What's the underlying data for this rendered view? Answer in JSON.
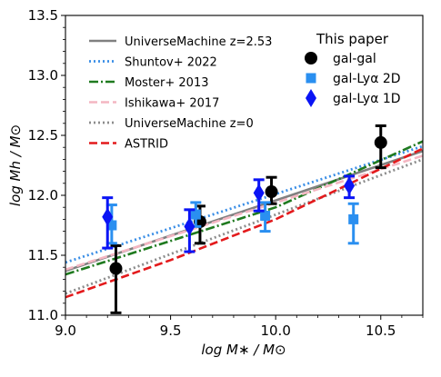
{
  "chart_data": {
    "type": "line",
    "xlabel": "log M∗ / M⊙",
    "ylabel": "log Mh / M⊙",
    "xlim": [
      9.0,
      10.7
    ],
    "ylim": [
      11.0,
      13.5
    ],
    "xticks": [
      "9.0",
      "9.5",
      "10.0",
      "10.5"
    ],
    "yticks": [
      "11.0",
      "11.5",
      "12.0",
      "12.5",
      "13.0",
      "13.5"
    ],
    "legend_left": {
      "placement": "upper-left",
      "entries": [
        {
          "label": "UniverseMachine z=2.53"
        },
        {
          "label": "Shuntov+ 2022"
        },
        {
          "label": "Moster+ 2013"
        },
        {
          "label": "Ishikawa+ 2017"
        },
        {
          "label": "UniverseMachine z=0"
        },
        {
          "label": "ASTRID"
        }
      ]
    },
    "legend_right": {
      "placement": "upper-right",
      "title": "This paper",
      "entries": [
        {
          "label": "gal-gal"
        },
        {
          "label": "gal-Lyα 2D"
        },
        {
          "label": "gal-Lyα 1D"
        }
      ]
    },
    "lines": [
      {
        "name": "UniverseMachine z=2.53",
        "color": "#808080",
        "dash": "solid",
        "x": [
          9.0,
          10.7
        ],
        "y": [
          11.37,
          12.37
        ]
      },
      {
        "name": "Shuntov+ 2022",
        "color": "#3a8ee6",
        "dash": "dotted",
        "x": [
          9.0,
          10.7
        ],
        "y": [
          11.44,
          12.41
        ]
      },
      {
        "name": "Moster+ 2013",
        "color": "#1f7a1f",
        "dash": "dashdot",
        "x": [
          9.0,
          9.5,
          10.0,
          10.7
        ],
        "y": [
          11.34,
          11.62,
          11.9,
          12.45
        ]
      },
      {
        "name": "Ishikawa+ 2017",
        "color": "#f4b6c2",
        "dash": "dashed",
        "x": [
          9.0,
          10.7
        ],
        "y": [
          11.38,
          12.33
        ]
      },
      {
        "name": "UniverseMachine z=0",
        "color": "#8c8c8c",
        "dash": "dotted",
        "x": [
          9.0,
          10.7
        ],
        "y": [
          11.18,
          12.3
        ]
      },
      {
        "name": "ASTRID",
        "color": "#e31a1c",
        "dash": "dashed",
        "x": [
          9.0,
          9.5,
          10.0,
          10.7
        ],
        "y": [
          11.15,
          11.46,
          11.8,
          12.39
        ]
      }
    ],
    "points": [
      {
        "name": "gal-gal",
        "marker": "circle",
        "color": "#000000",
        "data": [
          {
            "x": 9.24,
            "y": 11.39,
            "lo": 11.02,
            "hi": 11.58
          },
          {
            "x": 9.64,
            "y": 11.78,
            "lo": 11.6,
            "hi": 11.91
          },
          {
            "x": 9.98,
            "y": 12.03,
            "lo": 11.93,
            "hi": 12.15
          },
          {
            "x": 10.5,
            "y": 12.44,
            "lo": 12.23,
            "hi": 12.58
          }
        ]
      },
      {
        "name": "gal-Lyα 2D",
        "marker": "square",
        "color": "#2a8ff0",
        "data": [
          {
            "x": 9.22,
            "y": 11.75,
            "lo": 11.6,
            "hi": 11.92
          },
          {
            "x": 9.62,
            "y": 11.84,
            "lo": 11.74,
            "hi": 11.94
          },
          {
            "x": 9.95,
            "y": 11.83,
            "lo": 11.7,
            "hi": 11.94
          },
          {
            "x": 10.37,
            "y": 11.8,
            "lo": 11.6,
            "hi": 11.93
          }
        ]
      },
      {
        "name": "gal-Lyα 1D",
        "marker": "diamond",
        "color": "#0a14f5",
        "data": [
          {
            "x": 9.2,
            "y": 11.82,
            "lo": 11.56,
            "hi": 11.98
          },
          {
            "x": 9.59,
            "y": 11.74,
            "lo": 11.53,
            "hi": 11.88
          },
          {
            "x": 9.92,
            "y": 12.02,
            "lo": 11.87,
            "hi": 12.13
          },
          {
            "x": 10.35,
            "y": 12.08,
            "lo": 11.98,
            "hi": 12.16
          }
        ]
      }
    ]
  }
}
